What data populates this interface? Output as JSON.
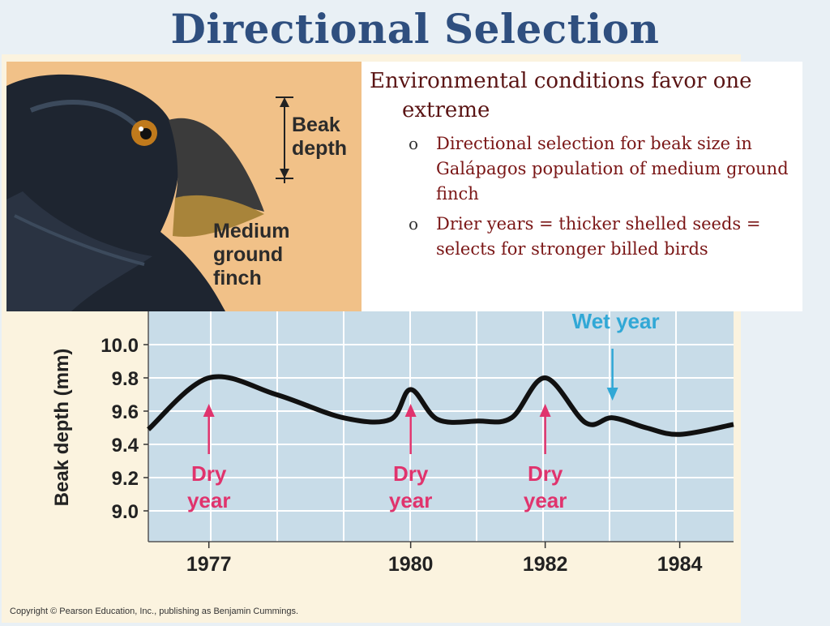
{
  "slide": {
    "title": "Directional Selection",
    "copyright": "Copyright © Pearson Education, Inc., publishing as Benjamin Cummings."
  },
  "finch_figure": {
    "beak_label": "Beak depth",
    "bird_label": "Medium ground finch"
  },
  "text": {
    "main_bullet": "Environmental conditions favor one extreme",
    "marker": "o",
    "sub_bullets": [
      "Directional selection for beak size in Galápagos population of medium ground finch",
      "Drier years = thicker shelled seeds = selects for stronger billed birds"
    ]
  },
  "colors": {
    "title": "#2f4f7f",
    "plot_bg": "#c8dce8",
    "line": "#111111",
    "dry_marker": "#e0336d",
    "wet_marker": "#31a8d6",
    "text_main": "#5a1414"
  },
  "chart_data": {
    "type": "line",
    "ylabel": "Beak depth (mm)",
    "ylim": [
      9.0,
      10.0
    ],
    "yticks": [
      "10.0",
      "9.8",
      "9.6",
      "9.4",
      "9.2",
      "9.0"
    ],
    "xticks": [
      "1977",
      "1980",
      "1982",
      "1984"
    ],
    "series": [
      {
        "x": [
          1976.1,
          1977.0,
          1978.0,
          1979.0,
          1979.7,
          1980.0,
          1980.4,
          1981.0,
          1981.5,
          1982.0,
          1982.6,
          1983.0,
          1983.5,
          1984.0,
          1984.8
        ],
        "values": [
          9.49,
          9.8,
          9.7,
          9.56,
          9.55,
          9.73,
          9.55,
          9.54,
          9.56,
          9.8,
          9.53,
          9.56,
          9.5,
          9.46,
          9.52
        ]
      }
    ],
    "annotations": [
      {
        "text_top": "Dry",
        "text_bottom": "year",
        "x": 1977,
        "kind": "dry"
      },
      {
        "text_top": "Dry",
        "text_bottom": "year",
        "x": 1980,
        "kind": "dry"
      },
      {
        "text_top": "Dry",
        "text_bottom": "year",
        "x": 1982,
        "kind": "dry"
      },
      {
        "text_top": "Wet year",
        "text_bottom": "",
        "x": 1983,
        "kind": "wet"
      }
    ]
  }
}
